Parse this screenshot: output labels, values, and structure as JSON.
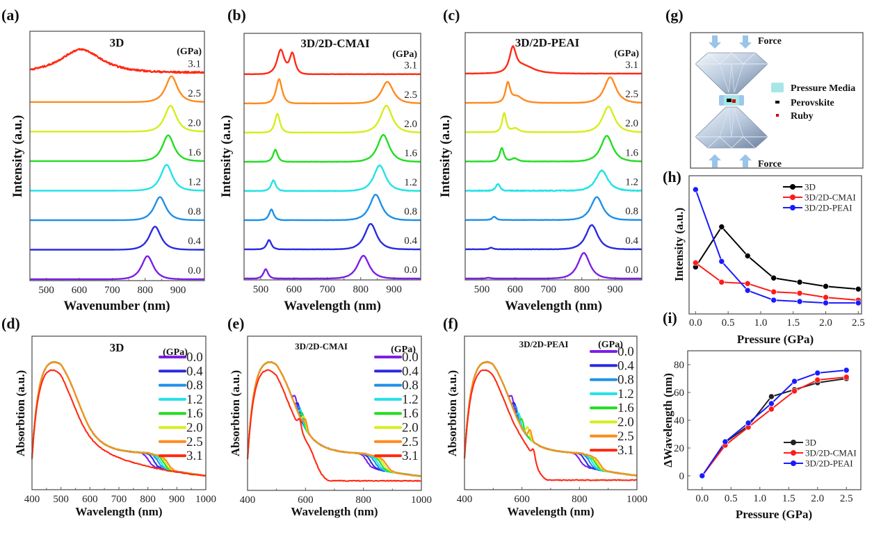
{
  "figure": {
    "panel_labels": [
      "(a)",
      "(b)",
      "(c)",
      "(d)",
      "(e)",
      "(f)",
      "(g)",
      "(h)",
      "(i)"
    ]
  },
  "pressure_colors": {
    "0.0": "#7a1fe6",
    "0.4": "#2a2be0",
    "0.8": "#1e90e8",
    "1.2": "#22e2e6",
    "1.6": "#22dd22",
    "2.0": "#d4ee1a",
    "2.5": "#ff8a1e",
    "3.1": "#ff2a12"
  },
  "chart_data": [
    {
      "id": "a",
      "type": "line",
      "subtype": "stacked-spectra",
      "title": "3D",
      "xlabel": "Wavenumber (nm)",
      "ylabel": "Intensity (a.u.)",
      "xlim": [
        450,
        980
      ],
      "xticks": [
        500,
        600,
        700,
        800,
        900
      ],
      "unit_label": "(GPa)",
      "series": [
        {
          "name": "0.0",
          "peaks": [
            {
              "center": 807,
              "height": 0.85,
              "width": 26
            }
          ],
          "noise": 0
        },
        {
          "name": "0.4",
          "peaks": [
            {
              "center": 830,
              "height": 0.85,
              "width": 26
            }
          ],
          "noise": 0
        },
        {
          "name": "0.8",
          "peaks": [
            {
              "center": 845,
              "height": 0.85,
              "width": 26
            }
          ],
          "noise": 0
        },
        {
          "name": "1.2",
          "peaks": [
            {
              "center": 865,
              "height": 0.95,
              "width": 26
            }
          ],
          "noise": 0
        },
        {
          "name": "1.6",
          "peaks": [
            {
              "center": 870,
              "height": 0.95,
              "width": 26
            }
          ],
          "noise": 0
        },
        {
          "name": "2.0",
          "peaks": [
            {
              "center": 877,
              "height": 0.95,
              "width": 26
            }
          ],
          "noise": 0
        },
        {
          "name": "2.5",
          "peaks": [
            {
              "center": 880,
              "height": 0.95,
              "width": 26
            }
          ],
          "noise": 0
        },
        {
          "name": "3.1",
          "peaks": [
            {
              "center": 605,
              "height": 0.85,
              "width": 90
            }
          ],
          "noise": 0.06
        }
      ]
    },
    {
      "id": "b",
      "type": "line",
      "subtype": "stacked-spectra",
      "title": "3D/2D-CMAI",
      "xlabel": "Wavelength (nm)",
      "ylabel": "Intensity (a.u.)",
      "xlim": [
        450,
        980
      ],
      "xticks": [
        500,
        600,
        700,
        800,
        900
      ],
      "unit_label": "(GPa)",
      "series": [
        {
          "name": "0.0",
          "peaks": [
            {
              "center": 515,
              "height": 0.35,
              "width": 10
            },
            {
              "center": 808,
              "height": 0.85,
              "width": 26
            }
          ],
          "noise": 0.01
        },
        {
          "name": "0.4",
          "peaks": [
            {
              "center": 525,
              "height": 0.35,
              "width": 10
            },
            {
              "center": 830,
              "height": 0.95,
              "width": 26
            }
          ],
          "noise": 0.01
        },
        {
          "name": "0.8",
          "peaks": [
            {
              "center": 532,
              "height": 0.4,
              "width": 10
            },
            {
              "center": 845,
              "height": 0.95,
              "width": 26
            }
          ],
          "noise": 0.01
        },
        {
          "name": "1.2",
          "peaks": [
            {
              "center": 538,
              "height": 0.4,
              "width": 10
            },
            {
              "center": 857,
              "height": 0.95,
              "width": 26
            }
          ],
          "noise": 0.015
        },
        {
          "name": "1.6",
          "peaks": [
            {
              "center": 544,
              "height": 0.45,
              "width": 10
            },
            {
              "center": 868,
              "height": 1.0,
              "width": 26
            }
          ],
          "noise": 0.01
        },
        {
          "name": "2.0",
          "peaks": [
            {
              "center": 550,
              "height": 0.7,
              "width": 11
            },
            {
              "center": 877,
              "height": 1.0,
              "width": 26
            }
          ],
          "noise": 0.01
        },
        {
          "name": "2.5",
          "peaks": [
            {
              "center": 555,
              "height": 0.9,
              "width": 13
            },
            {
              "center": 880,
              "height": 0.8,
              "width": 26
            }
          ],
          "noise": 0.01
        },
        {
          "name": "3.1",
          "peaks": [
            {
              "center": 560,
              "height": 0.9,
              "width": 16
            },
            {
              "center": 595,
              "height": 0.75,
              "width": 12
            }
          ],
          "noise": 0.01
        }
      ]
    },
    {
      "id": "c",
      "type": "line",
      "subtype": "stacked-spectra",
      "title": "3D/2D-PEAI",
      "xlabel": "Wavelength (nm)",
      "ylabel": "Intensity (a.u.)",
      "xlim": [
        450,
        980
      ],
      "xticks": [
        500,
        600,
        700,
        800,
        900
      ],
      "unit_label": "(GPa)",
      "series": [
        {
          "name": "0.0",
          "peaks": [
            {
              "center": 520,
              "height": 0.03,
              "width": 8
            },
            {
              "center": 806,
              "height": 0.95,
              "width": 26
            }
          ],
          "noise": 0.005
        },
        {
          "name": "0.4",
          "peaks": [
            {
              "center": 528,
              "height": 0.06,
              "width": 8
            },
            {
              "center": 830,
              "height": 0.9,
              "width": 26
            }
          ],
          "noise": 0.01
        },
        {
          "name": "0.8",
          "peaks": [
            {
              "center": 537,
              "height": 0.12,
              "width": 9
            },
            {
              "center": 845,
              "height": 0.85,
              "width": 26
            }
          ],
          "noise": 0.01
        },
        {
          "name": "1.2",
          "peaks": [
            {
              "center": 548,
              "height": 0.25,
              "width": 9
            },
            {
              "center": 860,
              "height": 0.75,
              "width": 26
            }
          ],
          "noise": 0.03
        },
        {
          "name": "1.6",
          "peaks": [
            {
              "center": 560,
              "height": 0.5,
              "width": 9
            },
            {
              "center": 598,
              "height": 0.12,
              "width": 14
            },
            {
              "center": 875,
              "height": 0.95,
              "width": 26
            }
          ],
          "noise": 0.01
        },
        {
          "name": "2.0",
          "peaks": [
            {
              "center": 567,
              "height": 0.7,
              "width": 9
            },
            {
              "center": 600,
              "height": 0.15,
              "width": 16
            },
            {
              "center": 880,
              "height": 0.95,
              "width": 26
            }
          ],
          "noise": 0.01
        },
        {
          "name": "2.5",
          "peaks": [
            {
              "center": 578,
              "height": 0.7,
              "width": 10
            },
            {
              "center": 605,
              "height": 0.25,
              "width": 25
            },
            {
              "center": 885,
              "height": 0.95,
              "width": 26
            }
          ],
          "noise": 0.01
        },
        {
          "name": "3.1",
          "peaks": [
            {
              "center": 593,
              "height": 0.85,
              "width": 14
            },
            {
              "center": 625,
              "height": 0.3,
              "width": 45
            }
          ],
          "noise": 0.01
        }
      ]
    },
    {
      "id": "d",
      "type": "line",
      "subtype": "absorption",
      "title": "3D",
      "xlabel": "Wavelength (nm)",
      "ylabel": "Absorbtion (a.u.)",
      "xlim": [
        400,
        1000
      ],
      "xticks": [
        400,
        500,
        600,
        700,
        800,
        900,
        1000
      ],
      "legend_title": "(GPa)",
      "legend_position": "top-right",
      "series": [
        {
          "name": "0.0",
          "edge": 800,
          "shoulder": 0,
          "step_edge": 0
        },
        {
          "name": "0.4",
          "edge": 820,
          "shoulder": 0,
          "step_edge": 0
        },
        {
          "name": "0.8",
          "edge": 835,
          "shoulder": 0,
          "step_edge": 0
        },
        {
          "name": "1.2",
          "edge": 845,
          "shoulder": 0,
          "step_edge": 0
        },
        {
          "name": "1.6",
          "edge": 855,
          "shoulder": 0,
          "step_edge": 0
        },
        {
          "name": "2.0",
          "edge": 862,
          "shoulder": 0,
          "step_edge": 0
        },
        {
          "name": "2.5",
          "edge": 870,
          "shoulder": 0,
          "step_edge": 0
        },
        {
          "name": "3.1",
          "edge": 0,
          "shoulder": 0,
          "step_edge": 0
        }
      ]
    },
    {
      "id": "e",
      "type": "line",
      "subtype": "absorption",
      "title": "3D/2D-CMAI",
      "xlabel": "Wavelength (nm)",
      "ylabel": "Absorbtion (a.u.)",
      "xlim": [
        400,
        1000
      ],
      "xticks": [
        400,
        600,
        800,
        1000
      ],
      "legend_title": "(GPa)",
      "legend_position": "top-right",
      "series": [
        {
          "name": "0.0",
          "edge": 810,
          "shoulder": 565,
          "step_edge": 0
        },
        {
          "name": "0.4",
          "edge": 825,
          "shoulder": 575,
          "step_edge": 0
        },
        {
          "name": "0.8",
          "edge": 840,
          "shoulder": 580,
          "step_edge": 0
        },
        {
          "name": "1.2",
          "edge": 850,
          "shoulder": 585,
          "step_edge": 0
        },
        {
          "name": "1.6",
          "edge": 860,
          "shoulder": 590,
          "step_edge": 0
        },
        {
          "name": "2.0",
          "edge": 870,
          "shoulder": 595,
          "step_edge": 0
        },
        {
          "name": "2.5",
          "edge": 880,
          "shoulder": 600,
          "step_edge": 0
        },
        {
          "name": "3.1",
          "edge": 0,
          "shoulder": 580,
          "step_edge": 640
        }
      ]
    },
    {
      "id": "f",
      "type": "line",
      "subtype": "absorption",
      "title": "3D/2D-PEAI",
      "xlabel": "Wavelength (nm)",
      "ylabel": "Absorbtion (a.u.)",
      "xlim": [
        400,
        1000
      ],
      "xticks": [
        400,
        600,
        800,
        1000
      ],
      "legend_title": "(GPa)",
      "legend_position": "top-right",
      "series": [
        {
          "name": "0.0",
          "edge": 800,
          "shoulder": 565,
          "step_edge": 0
        },
        {
          "name": "0.4",
          "edge": 820,
          "shoulder": 575,
          "step_edge": 0
        },
        {
          "name": "0.8",
          "edge": 835,
          "shoulder": 580,
          "step_edge": 0
        },
        {
          "name": "1.2",
          "edge": 845,
          "shoulder": 590,
          "step_edge": 0
        },
        {
          "name": "1.6",
          "edge": 855,
          "shoulder": 600,
          "step_edge": 0
        },
        {
          "name": "2.0",
          "edge": 862,
          "shoulder": 620,
          "step_edge": 0
        },
        {
          "name": "2.5",
          "edge": 870,
          "shoulder": 628,
          "step_edge": 0
        },
        {
          "name": "3.1",
          "edge": 0,
          "shoulder": 640,
          "step_edge": 650
        }
      ]
    },
    {
      "id": "h",
      "type": "line",
      "title": "",
      "xlabel": "Pressure (GPa)",
      "ylabel": "Intensity (a.u.)",
      "xlim": [
        -0.1,
        2.55
      ],
      "ylim": [
        0,
        1
      ],
      "xticks": [
        0.0,
        0.5,
        1.0,
        1.5,
        2.0,
        2.5
      ],
      "x": [
        0.0,
        0.4,
        0.8,
        1.2,
        1.6,
        2.0,
        2.5
      ],
      "legend_position": "top-right",
      "series": [
        {
          "name": "3D",
          "color": "#000000",
          "values": [
            0.34,
            0.63,
            0.42,
            0.26,
            0.23,
            0.2,
            0.18
          ]
        },
        {
          "name": "3D/2D-CMAI",
          "color": "#ff1a1a",
          "values": [
            0.37,
            0.23,
            0.22,
            0.16,
            0.15,
            0.12,
            0.1
          ]
        },
        {
          "name": "3D/2D-PEAI",
          "color": "#1a1aff",
          "values": [
            0.9,
            0.38,
            0.17,
            0.1,
            0.09,
            0.08,
            0.08
          ]
        }
      ]
    },
    {
      "id": "i",
      "type": "line",
      "title": "",
      "xlabel": "Pressure (GPa)",
      "ylabel": "ΔWavelength (nm)",
      "xlim": [
        -0.25,
        2.75
      ],
      "ylim": [
        -10,
        90
      ],
      "xticks": [
        0.0,
        0.5,
        1.0,
        1.5,
        2.0,
        2.5
      ],
      "yticks": [
        0,
        20,
        40,
        60,
        80
      ],
      "x": [
        0.0,
        0.4,
        0.8,
        1.2,
        1.6,
        2.0,
        2.5
      ],
      "legend_position": "bottom-right",
      "series": [
        {
          "name": "3D",
          "color": "#222222",
          "values": [
            0,
            24,
            36,
            57,
            62,
            67,
            70
          ]
        },
        {
          "name": "3D/2D-CMAI",
          "color": "#ff1a1a",
          "values": [
            0,
            22,
            35,
            48,
            61,
            69,
            71
          ]
        },
        {
          "name": "3D/2D-PEAI",
          "color": "#1a1aff",
          "values": [
            0,
            24.5,
            38,
            52,
            68,
            74,
            76
          ]
        }
      ]
    }
  ],
  "schematic_g": {
    "force_top": "Force",
    "force_bottom": "Force",
    "legend": [
      {
        "label": "Pressure Media",
        "color": "#a8e6e6"
      },
      {
        "label": "Perovskite",
        "color": "#000000"
      },
      {
        "label": "Ruby",
        "color": "#cc0000"
      }
    ],
    "arrow_color": "#9ac4ea"
  }
}
